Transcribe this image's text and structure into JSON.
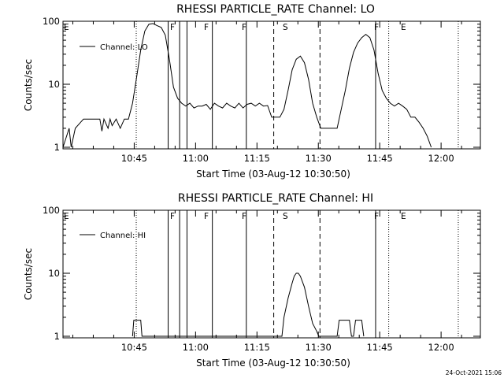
{
  "page": {
    "timestamp": "24-Oct-2021 15:06"
  },
  "chart_data": [
    {
      "type": "line",
      "title": "RHESSI PARTICLE_RATE Channel: LO",
      "xlabel": "Start Time (03-Aug-12 10:30:50)",
      "ylabel": "Counts/sec",
      "yscale": "log",
      "ylim": [
        1,
        100
      ],
      "xlim_minutes_after_start": [
        0,
        102
      ],
      "xticks": [
        "10:45",
        "11:00",
        "11:15",
        "11:30",
        "11:45",
        "12:00"
      ],
      "yticks": [
        "1",
        "10",
        "100"
      ],
      "legend": {
        "position": "top-left",
        "entries": [
          "Channel: LO"
        ]
      },
      "grid": false,
      "flags": {
        "labels": [
          "E",
          "F",
          "F",
          "F",
          "S",
          "F",
          "E"
        ]
      },
      "series": [
        {
          "name": "Channel: LO",
          "x": [
            0,
            1.5,
            2,
            3,
            5,
            9,
            9.5,
            10,
            11,
            11.5,
            12,
            13,
            14,
            15,
            16,
            17,
            18,
            19,
            20,
            21,
            22,
            23,
            24,
            25,
            26,
            27,
            28,
            29,
            30,
            31,
            32,
            33,
            34,
            35,
            36,
            37,
            38,
            39,
            40,
            41,
            42,
            43,
            44,
            45,
            46,
            47,
            48,
            49,
            50,
            51,
            52,
            53,
            54,
            55,
            56,
            57,
            58,
            59,
            60,
            61,
            62,
            63,
            64,
            65,
            66,
            67,
            68,
            69,
            70,
            71,
            72,
            73,
            74,
            75,
            76,
            77,
            78,
            79,
            80,
            81,
            82,
            83,
            84,
            85,
            86,
            87,
            88,
            89,
            90
          ],
          "y": [
            1,
            2,
            1,
            2,
            2.8,
            2.8,
            1.8,
            2.8,
            2,
            2.8,
            2.2,
            2.8,
            2,
            2.8,
            2.8,
            5,
            13,
            35,
            70,
            90,
            92,
            85,
            80,
            60,
            25,
            9,
            6,
            5,
            4.5,
            5,
            4.2,
            4.5,
            4.5,
            4.8,
            4,
            5,
            4.5,
            4.2,
            5,
            4.5,
            4.2,
            5,
            4.2,
            4.8,
            5,
            4.5,
            5,
            4.5,
            4.6,
            3,
            3,
            3,
            4,
            8,
            17,
            25,
            28,
            22,
            12,
            5,
            3,
            2,
            2,
            2,
            2,
            2,
            4,
            8,
            18,
            32,
            45,
            55,
            62,
            55,
            35,
            15,
            8,
            6,
            5,
            4.5,
            5,
            4.5,
            4,
            3,
            3,
            2.5,
            2,
            1.5,
            1
          ]
        }
      ]
    },
    {
      "type": "line",
      "title": "RHESSI PARTICLE_RATE Channel: HI",
      "xlabel": "Start Time (03-Aug-12 10:30:50)",
      "ylabel": "Counts/sec",
      "yscale": "log",
      "ylim": [
        1,
        100
      ],
      "xlim_minutes_after_start": [
        0,
        102
      ],
      "xticks": [
        "10:45",
        "11:00",
        "11:15",
        "11:30",
        "11:45",
        "12:00"
      ],
      "yticks": [
        "1",
        "10",
        "100"
      ],
      "legend": {
        "position": "top-left",
        "entries": [
          "Channel: HI"
        ]
      },
      "grid": false,
      "flags": {
        "labels": [
          "E",
          "F",
          "F",
          "F",
          "S",
          "F",
          "E"
        ]
      },
      "series": [
        {
          "name": "Channel: HI",
          "x": [
            17,
            17.3,
            19,
            19.3,
            53.5,
            54,
            55,
            56,
            56.5,
            57,
            57.5,
            58,
            59,
            60,
            61,
            62,
            62.5,
            67,
            67.5,
            70,
            70.5,
            71,
            71.5,
            73,
            73.5
          ],
          "y": [
            1,
            1.8,
            1.8,
            1,
            1,
            2,
            4,
            7,
            9,
            10,
            10,
            9,
            6,
            3,
            1.6,
            1.2,
            1,
            1,
            1.8,
            1.8,
            1,
            1,
            1.8,
            1.8,
            1
          ]
        }
      ]
    }
  ]
}
